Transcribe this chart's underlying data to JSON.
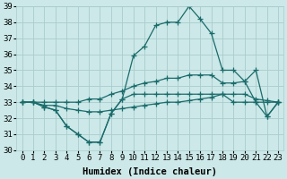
{
  "title": "",
  "xlabel": "Humidex (Indice chaleur)",
  "background_color": "#cce8e8",
  "grid_color": "#aacccc",
  "line_color": "#1a6b6b",
  "xlim": [
    -0.5,
    23.5
  ],
  "ylim": [
    30,
    39
  ],
  "yticks": [
    30,
    31,
    32,
    33,
    34,
    35,
    36,
    37,
    38,
    39
  ],
  "xticks": [
    0,
    1,
    2,
    3,
    4,
    5,
    6,
    7,
    8,
    9,
    10,
    11,
    12,
    13,
    14,
    15,
    16,
    17,
    18,
    19,
    20,
    21,
    22,
    23
  ],
  "series": [
    [
      33.0,
      33.0,
      32.7,
      32.5,
      31.5,
      31.0,
      30.5,
      30.5,
      32.3,
      33.2,
      35.9,
      36.5,
      37.8,
      38.0,
      38.0,
      39.0,
      38.2,
      37.3,
      35.0,
      35.0,
      34.3,
      35.0,
      32.1,
      33.0
    ],
    [
      33.0,
      33.0,
      33.0,
      33.0,
      33.0,
      33.0,
      33.2,
      33.2,
      33.5,
      33.7,
      34.0,
      34.2,
      34.3,
      34.5,
      34.5,
      34.7,
      34.7,
      34.7,
      34.2,
      34.2,
      34.3,
      33.0,
      33.0,
      33.0
    ],
    [
      33.0,
      33.0,
      32.8,
      32.8,
      32.6,
      32.5,
      32.4,
      32.4,
      32.5,
      32.6,
      32.7,
      32.8,
      32.9,
      33.0,
      33.0,
      33.1,
      33.2,
      33.3,
      33.5,
      33.5,
      33.5,
      33.2,
      33.1,
      33.0
    ],
    [
      33.0,
      33.0,
      32.7,
      32.5,
      31.5,
      31.0,
      30.5,
      30.5,
      32.3,
      33.2,
      33.5,
      33.5,
      33.5,
      33.5,
      33.5,
      33.5,
      33.5,
      33.5,
      33.5,
      33.0,
      33.0,
      33.0,
      32.1,
      33.0
    ]
  ],
  "marker": "+",
  "markersize": 4,
  "linewidth": 0.9,
  "xlabel_fontsize": 7.5,
  "tick_fontsize": 6.5
}
